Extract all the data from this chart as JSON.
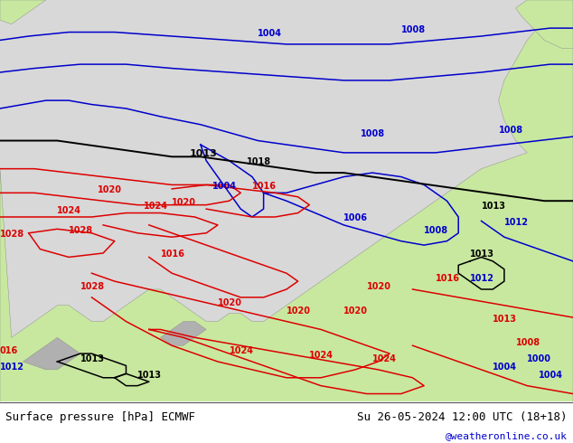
{
  "title_left": "Surface pressure [hPa] ECMWF",
  "title_right": "Su 26-05-2024 12:00 UTC (18+18)",
  "credit": "@weatheronline.co.uk",
  "bg_color": "#d8d8d8",
  "land_color": "#c8e8a0",
  "gray_land_color": "#b0b0b0",
  "contour_red": "#dd0000",
  "contour_blue": "#0000cc",
  "contour_black": "#000000",
  "label_fontsize": 7,
  "title_fontsize": 9,
  "credit_fontsize": 8,
  "fig_width": 6.34,
  "fig_height": 4.9,
  "dpi": 100
}
